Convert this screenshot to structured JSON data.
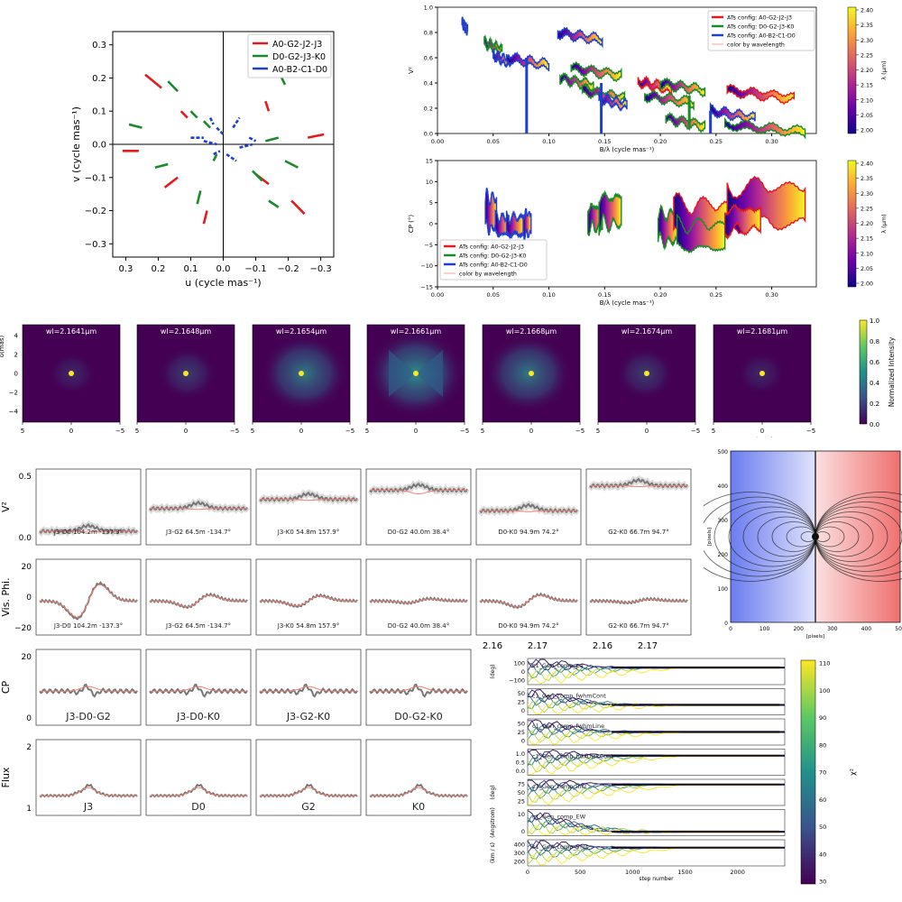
{
  "colors": {
    "red": "#e41a1c",
    "green": "#1b8a2a",
    "blue": "#1f3fd0",
    "viridis_dark": "#440154",
    "viridis_bright": "#fde725",
    "grey": "#777777",
    "model": "#f08070"
  },
  "chart_data": [
    {
      "id": "uv-coverage",
      "type": "scatter",
      "xlabel": "u (cycle mas⁻¹)",
      "ylabel": "v (cycle mas⁻¹)",
      "xlim": [
        0.34,
        -0.34
      ],
      "ylim": [
        -0.34,
        0.34
      ],
      "xticks": [
        "0.3",
        "0.2",
        "0.1",
        "0.0",
        "−0.1",
        "−0.2",
        "−0.3"
      ],
      "xtick_values": [
        0.3,
        0.2,
        0.1,
        0.0,
        -0.1,
        -0.2,
        -0.3
      ],
      "yticks": [
        "0.3",
        "0.2",
        "0.1",
        "0.0",
        "−0.1",
        "−0.2",
        "−0.3"
      ],
      "ytick_values": [
        0.3,
        0.2,
        0.1,
        0.0,
        -0.1,
        -0.2,
        -0.3
      ],
      "legend_position": "top-right",
      "series": [
        {
          "name": "A0-G2-J2-J3",
          "color": "#e41a1c",
          "segments": [
            [
              0.31,
              -0.02,
              0.26,
              -0.02
            ],
            [
              0.24,
              0.21,
              0.19,
              0.17
            ],
            [
              0.18,
              -0.13,
              0.14,
              -0.1
            ],
            [
              0.13,
              0.1,
              0.11,
              0.08
            ],
            [
              0.06,
              -0.24,
              0.05,
              -0.2
            ],
            [
              -0.1,
              -0.09,
              -0.14,
              -0.12
            ],
            [
              -0.13,
              0.13,
              -0.14,
              0.1
            ],
            [
              -0.21,
              -0.17,
              -0.25,
              -0.21
            ],
            [
              -0.26,
              0.02,
              -0.31,
              0.03
            ]
          ]
        },
        {
          "name": "D0-G2-J3-K0",
          "color": "#1b8a2a",
          "segments": [
            [
              0.29,
              0.06,
              0.25,
              0.05
            ],
            [
              0.17,
              0.19,
              0.14,
              0.16
            ],
            [
              0.21,
              -0.07,
              0.17,
              -0.06
            ],
            [
              0.1,
              0.1,
              0.08,
              0.08
            ],
            [
              0.06,
              0.07,
              0.04,
              0.05
            ],
            [
              0.08,
              -0.18,
              0.07,
              -0.14
            ],
            [
              0.03,
              -0.05,
              0.02,
              -0.03
            ],
            [
              -0.09,
              -0.08,
              -0.12,
              -0.11
            ],
            [
              -0.14,
              -0.17,
              -0.17,
              -0.19
            ],
            [
              -0.19,
              -0.05,
              -0.23,
              -0.07
            ],
            [
              -0.13,
              0.01,
              -0.17,
              0.02
            ],
            [
              -0.17,
              0.22,
              -0.19,
              0.18
            ]
          ]
        },
        {
          "name": "A0-B2-C1-D0",
          "color": "#1f3fd0",
          "segments": [
            [
              0.02,
              0.05,
              0.0,
              0.03
            ],
            [
              0.06,
              0.01,
              0.02,
              0.0
            ],
            [
              0.03,
              -0.03,
              0.01,
              -0.02
            ],
            [
              -0.01,
              -0.03,
              -0.04,
              -0.05
            ],
            [
              -0.03,
              0.05,
              -0.05,
              0.08
            ],
            [
              -0.05,
              -0.01,
              -0.09,
              0.0
            ],
            [
              0.1,
              0.02,
              0.06,
              0.02
            ],
            [
              -0.08,
              0.02,
              -0.1,
              0.01
            ],
            [
              0.04,
              0.08,
              0.03,
              0.06
            ]
          ]
        }
      ]
    },
    {
      "id": "v2-vs-baseline",
      "type": "line",
      "xlabel": "B/λ (cycle mas⁻¹)",
      "ylabel": "V²",
      "xlim": [
        0.0,
        0.34
      ],
      "ylim": [
        0.0,
        1.0
      ],
      "xticks": [
        "0.00",
        "0.05",
        "0.10",
        "0.15",
        "0.20",
        "0.25",
        "0.30"
      ],
      "yticks": [
        "0.0",
        "0.2",
        "0.4",
        "0.6",
        "0.8",
        "1.0"
      ],
      "legend_position": "top-right",
      "legend": [
        "ATs config: A0-G2-J2-J3",
        "ATs config: D0-G2-J3-K0",
        "ATs config: A0-B2-C1-D0",
        "color by wavelength"
      ],
      "colorbar": {
        "label": "λ (µm)",
        "ticks": [
          "2.40",
          "2.35",
          "2.30",
          "2.25",
          "2.20",
          "2.15",
          "2.10",
          "2.05",
          "2.00"
        ]
      },
      "segments": [
        {
          "x0": 0.022,
          "x1": 0.027,
          "y": 0.88,
          "edge": "#1f3fd0"
        },
        {
          "x0": 0.042,
          "x1": 0.058,
          "y": 0.72,
          "edge": "#1b8a2a"
        },
        {
          "x0": 0.05,
          "x1": 0.065,
          "y": 0.62,
          "edge": "#1f3fd0"
        },
        {
          "x0": 0.062,
          "x1": 0.1,
          "y": 0.6,
          "edge": "#1f3fd0"
        },
        {
          "x0": 0.108,
          "x1": 0.148,
          "y": 0.8,
          "edge": "#1f3fd0"
        },
        {
          "x0": 0.11,
          "x1": 0.14,
          "y": 0.44,
          "edge": "#1b8a2a"
        },
        {
          "x0": 0.12,
          "x1": 0.165,
          "y": 0.52,
          "edge": "#1b8a2a"
        },
        {
          "x0": 0.13,
          "x1": 0.168,
          "y": 0.34,
          "edge": "#1b8a2a"
        },
        {
          "x0": 0.145,
          "x1": 0.17,
          "y": 0.28,
          "edge": "#1f3fd0"
        },
        {
          "x0": 0.18,
          "x1": 0.21,
          "y": 0.41,
          "edge": "#e41a1c"
        },
        {
          "x0": 0.186,
          "x1": 0.23,
          "y": 0.3,
          "edge": "#1b8a2a"
        },
        {
          "x0": 0.2,
          "x1": 0.24,
          "y": 0.4,
          "edge": "#1b8a2a"
        },
        {
          "x0": 0.205,
          "x1": 0.24,
          "y": 0.12,
          "edge": "#1b8a2a"
        },
        {
          "x0": 0.26,
          "x1": 0.32,
          "y": 0.34,
          "edge": "#e41a1c"
        },
        {
          "x0": 0.245,
          "x1": 0.285,
          "y": 0.18,
          "edge": "#1f3fd0"
        },
        {
          "x0": 0.258,
          "x1": 0.33,
          "y": 0.07,
          "edge": "#1b8a2a"
        }
      ]
    },
    {
      "id": "cp-vs-baseline",
      "type": "line",
      "xlabel": "B/λ (cycle mas⁻¹)",
      "ylabel": "CP (°)",
      "xlim": [
        0.0,
        0.34
      ],
      "ylim": [
        -15,
        15
      ],
      "xticks": [
        "0.00",
        "0.05",
        "0.10",
        "0.15",
        "0.20",
        "0.25",
        "0.30"
      ],
      "yticks": [
        "15",
        "10",
        "5",
        "0",
        "−5",
        "−10",
        "−15"
      ],
      "legend_position": "lower-left",
      "legend": [
        "ATs config: A0-G2-J2-J3",
        "ATs config: D0-G2-J3-K0",
        "ATs config: A0-B2-C1-D0",
        "color by wavelength"
      ],
      "colorbar": {
        "label": "λ (µm)",
        "ticks": [
          "2.40",
          "2.35",
          "2.30",
          "2.25",
          "2.20",
          "2.15",
          "2.10",
          "2.05",
          "2.00"
        ]
      },
      "segments": [
        {
          "x0": 0.043,
          "x1": 0.053,
          "y": 2.5,
          "amp": 9,
          "edge": "#1f3fd0"
        },
        {
          "x0": 0.052,
          "x1": 0.064,
          "y": -0.5,
          "amp": 5,
          "edge": "#1f3fd0"
        },
        {
          "x0": 0.062,
          "x1": 0.077,
          "y": -0.5,
          "amp": 5,
          "edge": "#1f3fd0"
        },
        {
          "x0": 0.077,
          "x1": 0.084,
          "y": 0.0,
          "amp": 6,
          "edge": "#1f3fd0"
        },
        {
          "x0": 0.135,
          "x1": 0.148,
          "y": 1.5,
          "amp": 6,
          "edge": "#1b8a2a"
        },
        {
          "x0": 0.145,
          "x1": 0.165,
          "y": 3.0,
          "amp": 8,
          "edge": "#1b8a2a"
        },
        {
          "x0": 0.198,
          "x1": 0.215,
          "y": -1.0,
          "amp": 8,
          "edge": "#1b8a2a"
        },
        {
          "x0": 0.212,
          "x1": 0.26,
          "y": 1.0,
          "amp": 9,
          "edge": "#e41a1c"
        },
        {
          "x0": 0.215,
          "x1": 0.258,
          "y": -3.0,
          "amp": 7,
          "edge": "#1b8a2a"
        },
        {
          "x0": 0.26,
          "x1": 0.33,
          "y": 4.5,
          "amp": 11,
          "edge": "#e41a1c"
        },
        {
          "x0": 0.258,
          "x1": 0.29,
          "y": 1.0,
          "amp": 6,
          "edge": "#e41a1c"
        }
      ]
    },
    {
      "id": "intensity-maps",
      "type": "heatmap",
      "panels": [
        {
          "title": "wl=2.1641µm",
          "halo": 0.3
        },
        {
          "title": "wl=2.1648µm",
          "halo": 0.45
        },
        {
          "title": "wl=2.1654µm",
          "halo": 0.85
        },
        {
          "title": "wl=2.1661µm",
          "halo": 1.0
        },
        {
          "title": "wl=2.1668µm",
          "halo": 0.85
        },
        {
          "title": "wl=2.1674µm",
          "halo": 0.45
        },
        {
          "title": "wl=2.1681µm",
          "halo": 0.3
        }
      ],
      "ylabel": "δ(mas)",
      "xlabel": "α(mas)",
      "xticks": [
        "5",
        "0",
        "−5"
      ],
      "yticks": [
        "4",
        "2",
        "0",
        "−2",
        "−4"
      ],
      "colorbar": {
        "label": "Normalized Intensity",
        "ticks": [
          "1.0",
          "0.8",
          "0.6",
          "0.4",
          "0.2",
          "0.0"
        ]
      }
    },
    {
      "id": "velocity-map",
      "type": "heatmap",
      "xlabel": "[pixels]",
      "ylabel": "[pixels]",
      "xticks": [
        "0",
        "100",
        "200",
        "300",
        "400",
        "500"
      ],
      "yticks": [
        "500",
        "400",
        "300",
        "200",
        "100",
        "0"
      ]
    },
    {
      "id": "mcmc-chains",
      "type": "line",
      "xlabel": "step number",
      "xticks": [
        "0",
        "500",
        "1000",
        "1500",
        "2000"
      ],
      "xlim": [
        0,
        2450
      ],
      "colorbar": {
        "label": "χ²",
        "ticks": [
          "110",
          "100",
          "90",
          "80",
          "70",
          "60",
          "50",
          "40",
          "30"
        ]
      },
      "panels": [
        {
          "label": "c1_Gen_comp_pa",
          "ylabel": "(deg)",
          "yticks": [
            "100",
            "0",
            "−100"
          ],
          "final": 0.35
        },
        {
          "label": "c1_Gen_comp_fwhmCont",
          "ylabel": "",
          "yticks": [
            "50",
            "25",
            "0"
          ],
          "final": 0.62
        },
        {
          "label": "c1_Gen_comp_fwhmLine",
          "ylabel": "",
          "yticks": [
            "50",
            "25",
            "0"
          ],
          "final": 0.5
        },
        {
          "label": "c1_Gen_comp_fluxDiskCont",
          "ylabel": "",
          "yticks": [
            "1.0",
            "0.5",
            "0.0"
          ],
          "final": 0.25
        },
        {
          "label": "c1_Gen_comp_incl",
          "ylabel": "(deg)",
          "yticks": [
            "75",
            "50",
            "25"
          ],
          "final": 0.2
        },
        {
          "label": "c1_Gen_comp_EW",
          "ylabel": "(Angstrom)",
          "yticks": [
            "10",
            "0"
          ],
          "final": 0.85
        },
        {
          "label": "c1_Gen_comp_Vrot",
          "ylabel": "(km / s)",
          "yticks": [
            "400",
            "300",
            "200"
          ],
          "final": 0.3
        }
      ]
    }
  ],
  "grid": {
    "row_labels": [
      "V²",
      "Vis. Phi.",
      "CP",
      "Flux"
    ],
    "rows": [
      {
        "ylim_labels": [
          "0.5",
          "0.0"
        ],
        "panels": [
          "J3-D0 104.2m -137.3°",
          "J3-G2 64.5m -134.7°",
          "J3-K0 54.8m 157.9°",
          "D0-G2 40.0m 38.4°",
          "D0-K0 94.9m 74.2°",
          "G2-K0 66.7m 94.7°"
        ],
        "levels": [
          0.82,
          0.52,
          0.4,
          0.28,
          0.55,
          0.22
        ]
      },
      {
        "ylim_labels": [
          "20",
          "0",
          "−20"
        ],
        "panels": [
          "J3-D0 104.2m -137.3°",
          "J3-G2 64.5m -134.7°",
          "J3-K0 54.8m 157.9°",
          "D0-G2 40.0m 38.4°",
          "D0-K0 94.9m 74.2°",
          "G2-K0 66.7m 94.7°"
        ],
        "amps": [
          1.0,
          0.35,
          0.3,
          0.12,
          0.35,
          0.1
        ]
      },
      {
        "ylim_labels": [
          "20",
          "0"
        ],
        "panels": [
          "J3-D0-G2",
          "J3-D0-K0",
          "J3-G2-K0",
          "D0-G2-K0"
        ]
      },
      {
        "ylim_labels": [
          "2",
          "1"
        ],
        "panels": [
          "J3",
          "D0",
          "G2",
          "K0"
        ]
      }
    ],
    "wave_ticks": [
      "2.16",
      "2.17"
    ]
  }
}
